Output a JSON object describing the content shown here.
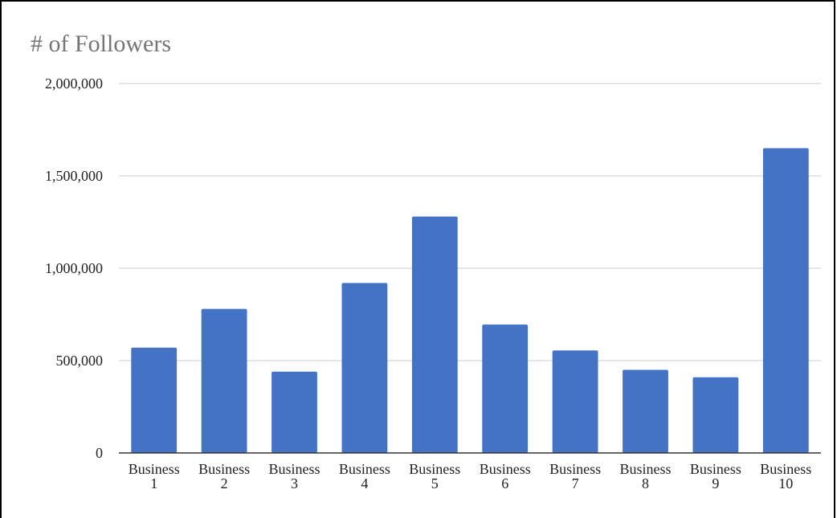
{
  "chart_data": {
    "type": "bar",
    "title": "# of Followers",
    "xlabel": "",
    "ylabel": "",
    "categories": [
      [
        "Business",
        "1"
      ],
      [
        "Business",
        "2"
      ],
      [
        "Business",
        "3"
      ],
      [
        "Business",
        "4"
      ],
      [
        "Business",
        "5"
      ],
      [
        "Business",
        "6"
      ],
      [
        "Business",
        "7"
      ],
      [
        "Business",
        "8"
      ],
      [
        "Business",
        "9"
      ],
      [
        "Business",
        "10"
      ]
    ],
    "values": [
      570000,
      780000,
      440000,
      920000,
      1280000,
      695000,
      555000,
      450000,
      410000,
      1650000
    ],
    "ylim": [
      0,
      2000000
    ],
    "yticks": [
      0,
      500000,
      1000000,
      1500000,
      2000000
    ],
    "ytick_labels": [
      "0",
      "500,000",
      "1,000,000",
      "1,500,000",
      "2,000,000"
    ],
    "grid": true,
    "legend": "none",
    "colors": {
      "bar": "#4472C4",
      "grid": "#cccccc",
      "axis": "#333333"
    }
  }
}
